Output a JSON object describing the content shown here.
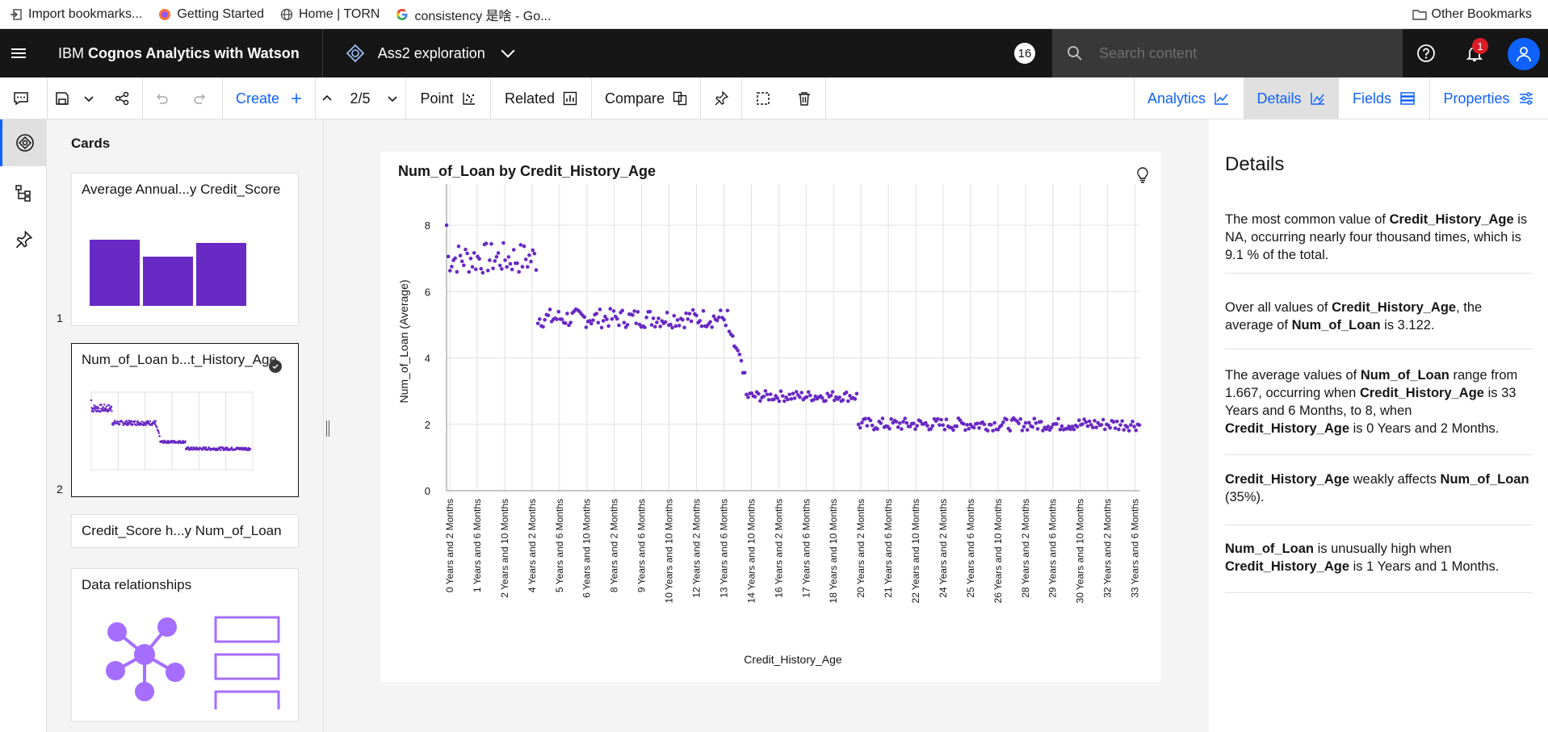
{
  "bookmarks": [
    {
      "label": "Import bookmarks...",
      "icon": "import-icon"
    },
    {
      "label": "Getting Started",
      "icon": "firefox-icon"
    },
    {
      "label": "Home | TORN",
      "icon": "globe-icon"
    },
    {
      "label": "consistency 是啥 - Go...",
      "icon": "google-icon"
    }
  ],
  "other_bookmarks": "Other Bookmarks",
  "header": {
    "product_prefix": "IBM ",
    "product_name": "Cognos Analytics with Watson",
    "exploration": "Ass2 exploration",
    "count_badge": "16",
    "search_placeholder": "Search content",
    "notification_count": "1"
  },
  "toolbar": {
    "create": "Create",
    "page": "2/5",
    "point": "Point",
    "related": "Related",
    "compare": "Compare",
    "analytics": "Analytics",
    "details": "Details",
    "fields": "Fields",
    "properties": "Properties"
  },
  "cards": {
    "title": "Cards",
    "items": [
      {
        "label": "Average Annual...y Credit_Score",
        "num": "1"
      },
      {
        "label": "Num_of_Loan b...t_History_Age",
        "num": "2"
      },
      {
        "label": "Credit_Score h...y Num_of_Loan",
        "num": ""
      },
      {
        "label": "Data relationships",
        "num": ""
      }
    ],
    "bar_values": [
      0.82,
      0.61,
      0.78
    ]
  },
  "chart_data": {
    "type": "scatter",
    "title": "Num_of_Loan by Credit_History_Age",
    "xlabel": "Credit_History_Age",
    "ylabel": "Num_of_Loan (Average)",
    "ylim": [
      0,
      9
    ],
    "yticks": [
      0,
      2,
      4,
      6,
      8
    ],
    "x_tick_labels": [
      "0 Years and 2 Months",
      "1 Years and 6 Months",
      "2 Years and 10 Months",
      "4 Years and 2 Months",
      "5 Years and 6 Months",
      "6 Years and 10 Months",
      "8 Years and 2 Months",
      "9 Years and 6 Months",
      "10 Years and 10 Months",
      "12 Years and 2 Months",
      "13 Years and 6 Months",
      "14 Years and 10 Months",
      "16 Years and 2 Months",
      "17 Years and 6 Months",
      "18 Years and 10 Months",
      "20 Years and 2 Months",
      "21 Years and 6 Months",
      "22 Years and 10 Months",
      "24 Years and 2 Months",
      "25 Years and 6 Months",
      "26 Years and 10 Months",
      "28 Years and 2 Months",
      "29 Years and 6 Months",
      "30 Years and 10 Months",
      "32 Years and 2 Months",
      "33 Years and 6 Months"
    ],
    "segments": [
      {
        "from_month": 2,
        "to_month": 54,
        "mean": 7.0,
        "spread": 0.3
      },
      {
        "from_month": 55,
        "to_month": 165,
        "mean": 5.2,
        "spread": 0.18
      },
      {
        "from_month": 166,
        "to_month": 175,
        "mean": 4.5,
        "spread": 0.25
      },
      {
        "from_month": 176,
        "to_month": 240,
        "mean": 2.85,
        "spread": 0.1
      },
      {
        "from_month": 241,
        "to_month": 404,
        "mean": 2.0,
        "spread": 0.12
      }
    ],
    "grid": true,
    "point_color": "#6929c4"
  },
  "details": {
    "title": "Details",
    "insights": [
      {
        "parts": [
          "The most common value of ",
          "Credit_History_Age",
          " is NA, occurring nearly four thousand times, which is 9.1 % of the total."
        ]
      },
      {
        "parts": [
          "Over all values of ",
          "Credit_History_Age",
          ", the average of ",
          "Num_of_Loan",
          " is 3.122."
        ]
      },
      {
        "parts": [
          "The average values of ",
          "Num_of_Loan",
          " range from 1.667, occurring when ",
          "Credit_History_Age",
          " is 33 Years and 6 Months, to 8, when ",
          "Credit_History_Age",
          " is 0 Years and 2 Months."
        ]
      },
      {
        "parts": [
          "",
          "Credit_History_Age",
          " weakly affects ",
          "Num_of_Loan",
          " (35%)."
        ]
      },
      {
        "parts": [
          "",
          "Num_of_Loan",
          " is unusually high when ",
          "Credit_History_Age",
          " is 1 Years and 1 Months."
        ]
      }
    ]
  },
  "colors": {
    "accent": "#0f62fe",
    "header_bg": "#161616",
    "purple": "#6929c4"
  }
}
